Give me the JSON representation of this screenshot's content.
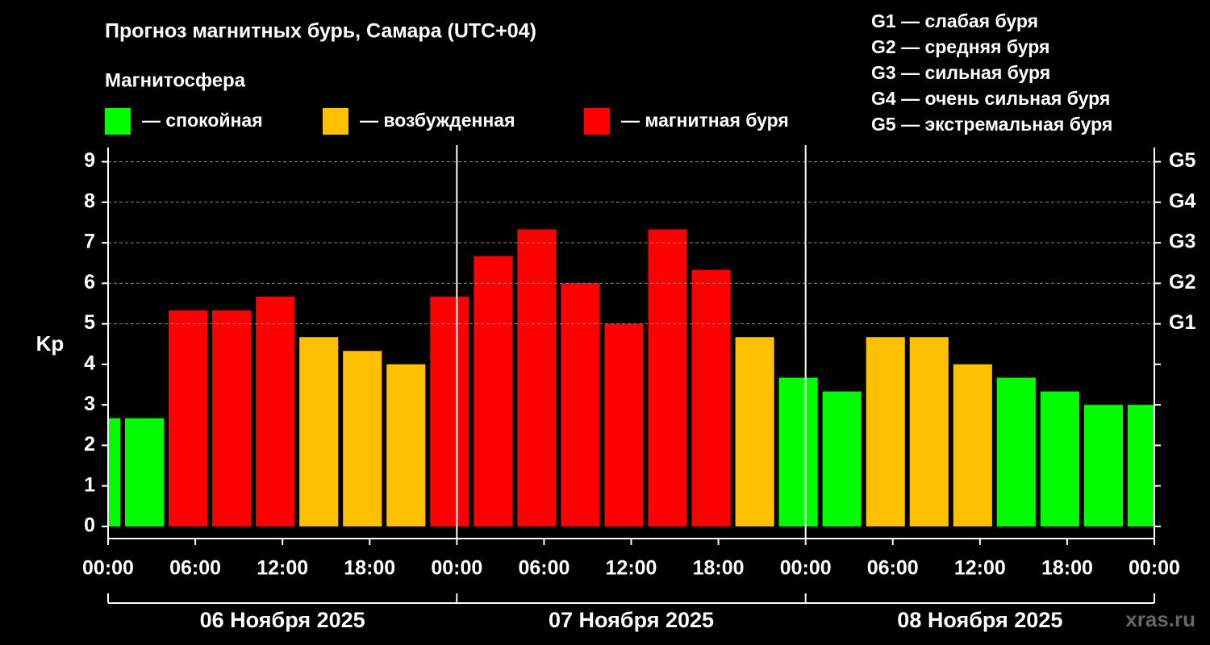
{
  "chart_data": {
    "type": "bar",
    "title": "Прогноз магнитных бурь, Самара (UTC+04)",
    "subtitle": "Магнитосфера",
    "ylabel": "Kp",
    "legend": [
      {
        "label": "— спокойная",
        "color": "#00ff00"
      },
      {
        "label": "— возбужденная",
        "color": "#ffc000"
      },
      {
        "label": "— магнитная буря",
        "color": "#ff0000"
      }
    ],
    "notes": [
      "G1 — слабая буря",
      "G2 — средняя буря",
      "G3 — сильная буря",
      "G4 — очень сильная буря",
      "G5 — экстремальная буря"
    ],
    "x": [
      -0.5,
      2.5,
      5.5,
      8.5,
      11.5,
      14.5,
      17.5,
      20.5,
      23.5,
      26.5,
      29.5,
      32.5,
      35.5,
      38.5,
      41.5,
      44.5,
      47.5,
      50.5,
      53.5,
      56.5,
      59.5,
      62.5,
      65.5,
      68.5,
      71.5
    ],
    "values": [
      2.67,
      2.67,
      5.33,
      5.33,
      5.67,
      4.67,
      4.33,
      4.0,
      5.67,
      6.67,
      7.33,
      6.0,
      5.0,
      7.33,
      6.33,
      4.67,
      3.67,
      3.33,
      4.67,
      4.67,
      4.0,
      3.67,
      3.33,
      3.0,
      3.0
    ],
    "colors": [
      "#00ff00",
      "#00ff00",
      "#ff0000",
      "#ff0000",
      "#ff0000",
      "#ffc000",
      "#ffc000",
      "#ffc000",
      "#ff0000",
      "#ff0000",
      "#ff0000",
      "#ff0000",
      "#ff0000",
      "#ff0000",
      "#ff0000",
      "#ffc000",
      "#00ff00",
      "#00ff00",
      "#ffc000",
      "#ffc000",
      "#ffc000",
      "#00ff00",
      "#00ff00",
      "#00ff00",
      "#00ff00"
    ],
    "xlim": [
      0,
      72
    ],
    "xticks": [
      {
        "value": 0,
        "label": "00:00"
      },
      {
        "value": 6,
        "label": "06:00"
      },
      {
        "value": 12,
        "label": "12:00"
      },
      {
        "value": 18,
        "label": "18:00"
      },
      {
        "value": 24,
        "label": "00:00"
      },
      {
        "value": 30,
        "label": "06:00"
      },
      {
        "value": 36,
        "label": "12:00"
      },
      {
        "value": 42,
        "label": "18:00"
      },
      {
        "value": 48,
        "label": "00:00"
      },
      {
        "value": 54,
        "label": "06:00"
      },
      {
        "value": 60,
        "label": "12:00"
      },
      {
        "value": 66,
        "label": "18:00"
      },
      {
        "value": 72,
        "label": "00:00"
      }
    ],
    "date_labels": [
      "06 Ноября 2025",
      "07 Ноября 2025",
      "08 Ноября 2025"
    ],
    "ylim": [
      -0.3,
      9.35
    ],
    "yticks": [
      0,
      1,
      2,
      3,
      4,
      5,
      6,
      7,
      8,
      9
    ],
    "y2lim": [
      -0.3,
      9.35
    ],
    "y2ticks": [
      {
        "value": 5,
        "label": "G1"
      },
      {
        "value": 6,
        "label": "G2"
      },
      {
        "value": 7,
        "label": "G3"
      },
      {
        "value": 8,
        "label": "G4"
      },
      {
        "value": 9,
        "label": "G5"
      }
    ],
    "grid": true,
    "watermark": "xras.ru"
  }
}
